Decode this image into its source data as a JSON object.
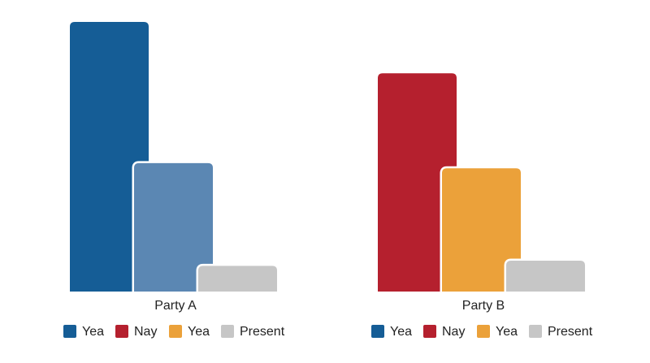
{
  "chart_data": [
    {
      "type": "bar",
      "xlabel": "Party A",
      "values": [
        210,
        100,
        20
      ],
      "colors": [
        "#155d96",
        "#5b87b3",
        "#c6c6c6"
      ],
      "legend": [
        {
          "name": "Yea",
          "color": "#155d96"
        },
        {
          "name": "Nay",
          "color": "#b5202e"
        },
        {
          "name": "Yea",
          "color": "#eba13a"
        },
        {
          "name": "Present",
          "color": "#c6c6c6"
        }
      ]
    },
    {
      "type": "bar",
      "xlabel": "Party B",
      "values": [
        170,
        96,
        24
      ],
      "colors": [
        "#b5202e",
        "#eba13a",
        "#c6c6c6"
      ],
      "legend": [
        {
          "name": "Yea",
          "color": "#155d96"
        },
        {
          "name": "Nay",
          "color": "#b5202e"
        },
        {
          "name": "Yea",
          "color": "#eba13a"
        },
        {
          "name": "Present",
          "color": "#c6c6c6"
        }
      ]
    }
  ]
}
